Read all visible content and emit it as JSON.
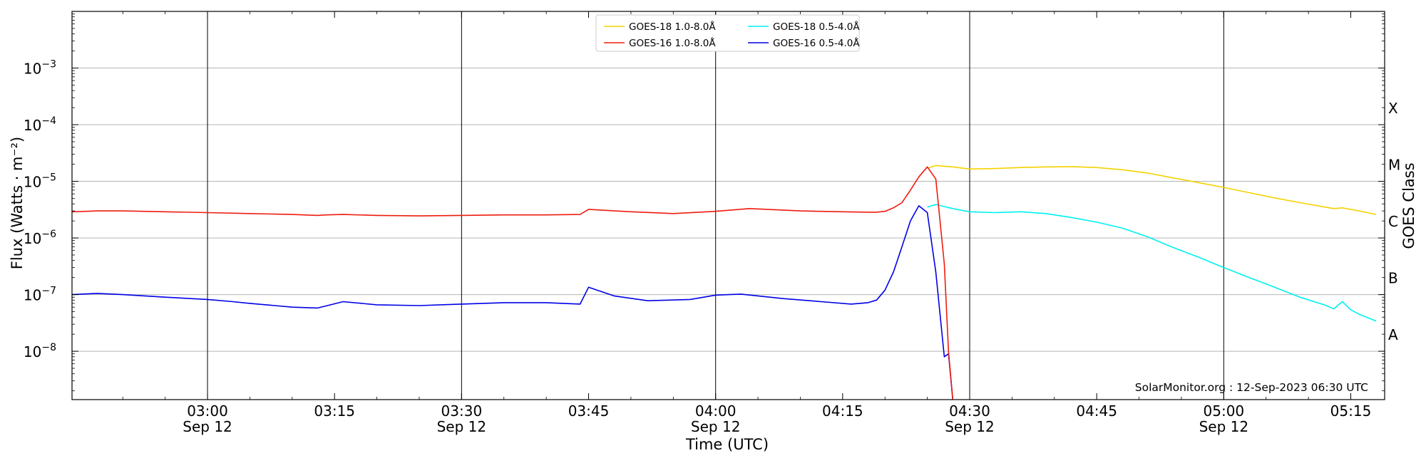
{
  "chart_data": {
    "type": "line",
    "xlabel": "Time (UTC)",
    "ylabel": "Flux (Watts · m⁻²)",
    "right_ylabel": "GOES Class",
    "credit": "SolarMonitor.org : 12-Sep-2023 06:30 UTC",
    "x_range": [
      "02:44",
      "05:19"
    ],
    "ylim": [
      1.4e-09,
      0.01
    ],
    "y_scale": "log",
    "grid": "horizontal",
    "legend_position": "top-center",
    "x_ticks": [
      {
        "time": "03:00",
        "top": "03:00",
        "bottom": "Sep 12",
        "major": true
      },
      {
        "time": "03:15",
        "top": "03:15",
        "bottom": "",
        "major": false
      },
      {
        "time": "03:30",
        "top": "03:30",
        "bottom": "Sep 12",
        "major": true
      },
      {
        "time": "03:45",
        "top": "03:45",
        "bottom": "",
        "major": false
      },
      {
        "time": "04:00",
        "top": "04:00",
        "bottom": "Sep 12",
        "major": true
      },
      {
        "time": "04:15",
        "top": "04:15",
        "bottom": "",
        "major": false
      },
      {
        "time": "04:30",
        "top": "04:30",
        "bottom": "Sep 12",
        "major": true
      },
      {
        "time": "04:45",
        "top": "04:45",
        "bottom": "",
        "major": false
      },
      {
        "time": "05:00",
        "top": "05:00",
        "bottom": "Sep 12",
        "major": true
      },
      {
        "time": "05:15",
        "top": "05:15",
        "bottom": "",
        "major": false
      }
    ],
    "y_ticks": [
      {
        "value": 0.001,
        "base": "10",
        "exp": "−3"
      },
      {
        "value": 0.0001,
        "base": "10",
        "exp": "−4"
      },
      {
        "value": 1e-05,
        "base": "10",
        "exp": "−5"
      },
      {
        "value": 1e-06,
        "base": "10",
        "exp": "−6"
      },
      {
        "value": 1e-07,
        "base": "10",
        "exp": "−7"
      },
      {
        "value": 1e-08,
        "base": "10",
        "exp": "−8"
      }
    ],
    "goes_classes": [
      {
        "label": "X",
        "value": 0.0002
      },
      {
        "label": "M",
        "value": 2e-05
      },
      {
        "label": "C",
        "value": 2e-06
      },
      {
        "label": "B",
        "value": 2e-07
      },
      {
        "label": "A",
        "value": 2e-08
      }
    ],
    "series": [
      {
        "name": "GOES-18 1.0-8.0Å",
        "color": "#f5d200",
        "x": [
          "04:25",
          "04:26",
          "04:28",
          "04:30",
          "04:33",
          "04:36",
          "04:39",
          "04:42",
          "04:45",
          "04:48",
          "04:51",
          "04:54",
          "04:57",
          "05:00",
          "05:03",
          "05:06",
          "05:09",
          "05:12",
          "05:13",
          "05:14",
          "05:16",
          "05:18"
        ],
        "values": [
          1.7e-05,
          1.9e-05,
          1.8e-05,
          1.65e-05,
          1.68e-05,
          1.75e-05,
          1.8e-05,
          1.82e-05,
          1.75e-05,
          1.6e-05,
          1.4e-05,
          1.15e-05,
          9.5e-06,
          7.8e-06,
          6.3e-06,
          5.1e-06,
          4.2e-06,
          3.5e-06,
          3.3e-06,
          3.4e-06,
          3e-06,
          2.6e-06
        ]
      },
      {
        "name": "GOES-16 1.0-8.0Å",
        "color": "#ee1c0e",
        "x": [
          "02:44",
          "02:47",
          "02:50",
          "02:55",
          "03:00",
          "03:05",
          "03:10",
          "03:13",
          "03:14",
          "03:16",
          "03:20",
          "03:25",
          "03:30",
          "03:35",
          "03:40",
          "03:44",
          "03:45",
          "03:50",
          "03:55",
          "04:00",
          "04:04",
          "04:10",
          "04:15",
          "04:18",
          "04:19",
          "04:20",
          "04:21",
          "04:22",
          "04:23",
          "04:24",
          "04:25",
          "04:26",
          "04:27",
          "04:27.5",
          "04:28"
        ],
        "values": [
          2.9e-06,
          3e-06,
          3e-06,
          2.9e-06,
          2.8e-06,
          2.7e-06,
          2.6e-06,
          2.5e-06,
          2.55e-06,
          2.6e-06,
          2.5e-06,
          2.45e-06,
          2.5e-06,
          2.55e-06,
          2.55e-06,
          2.6e-06,
          3.2e-06,
          2.9e-06,
          2.7e-06,
          2.95e-06,
          3.3e-06,
          3e-06,
          2.9e-06,
          2.85e-06,
          2.85e-06,
          2.95e-06,
          3.4e-06,
          4.2e-06,
          7e-06,
          1.2e-05,
          1.8e-05,
          1.1e-05,
          3.5e-07,
          1e-08,
          1.4e-09
        ]
      },
      {
        "name": "GOES-18 0.5-4.0Å",
        "color": "#00f0f0",
        "x": [
          "04:25",
          "04:26",
          "04:28",
          "04:30",
          "04:33",
          "04:36",
          "04:39",
          "04:42",
          "04:45",
          "04:48",
          "04:51",
          "04:54",
          "04:57",
          "05:00",
          "05:03",
          "05:06",
          "05:09",
          "05:12",
          "05:13",
          "05:14",
          "05:15",
          "05:16",
          "05:18"
        ],
        "values": [
          3.5e-06,
          3.9e-06,
          3.3e-06,
          2.9e-06,
          2.8e-06,
          2.9e-06,
          2.7e-06,
          2.3e-06,
          1.9e-06,
          1.5e-06,
          1.05e-06,
          6.8e-07,
          4.6e-07,
          3e-07,
          2e-07,
          1.35e-07,
          9e-08,
          6.5e-08,
          5.6e-08,
          7.5e-08,
          5.4e-08,
          4.5e-08,
          3.4e-08
        ]
      },
      {
        "name": "GOES-16 0.5-4.0Å",
        "color": "#0000e6",
        "x": [
          "02:44",
          "02:47",
          "02:50",
          "02:55",
          "03:00",
          "03:03",
          "03:05",
          "03:10",
          "03:13",
          "03:14",
          "03:16",
          "03:20",
          "03:25",
          "03:30",
          "03:35",
          "03:40",
          "03:44",
          "03:45",
          "03:48",
          "03:52",
          "03:57",
          "04:00",
          "04:03",
          "04:08",
          "04:13",
          "04:16",
          "04:18",
          "04:19",
          "04:20",
          "04:21",
          "04:22",
          "04:23",
          "04:24",
          "04:25",
          "04:26",
          "04:27",
          "04:27.5",
          "04:28"
        ],
        "values": [
          1e-07,
          1.05e-07,
          1e-07,
          9e-08,
          8.2e-08,
          7.5e-08,
          7e-08,
          6e-08,
          5.8e-08,
          6.3e-08,
          7.5e-08,
          6.6e-08,
          6.4e-08,
          6.8e-08,
          7.2e-08,
          7.2e-08,
          6.8e-08,
          1.35e-07,
          9.5e-08,
          7.8e-08,
          8.2e-08,
          9.8e-08,
          1.02e-07,
          8.5e-08,
          7.4e-08,
          6.8e-08,
          7.2e-08,
          8e-08,
          1.2e-07,
          2.5e-07,
          7e-07,
          2e-06,
          3.7e-06,
          2.8e-06,
          2.5e-07,
          8e-09,
          9e-09,
          1.4e-09
        ]
      }
    ]
  }
}
